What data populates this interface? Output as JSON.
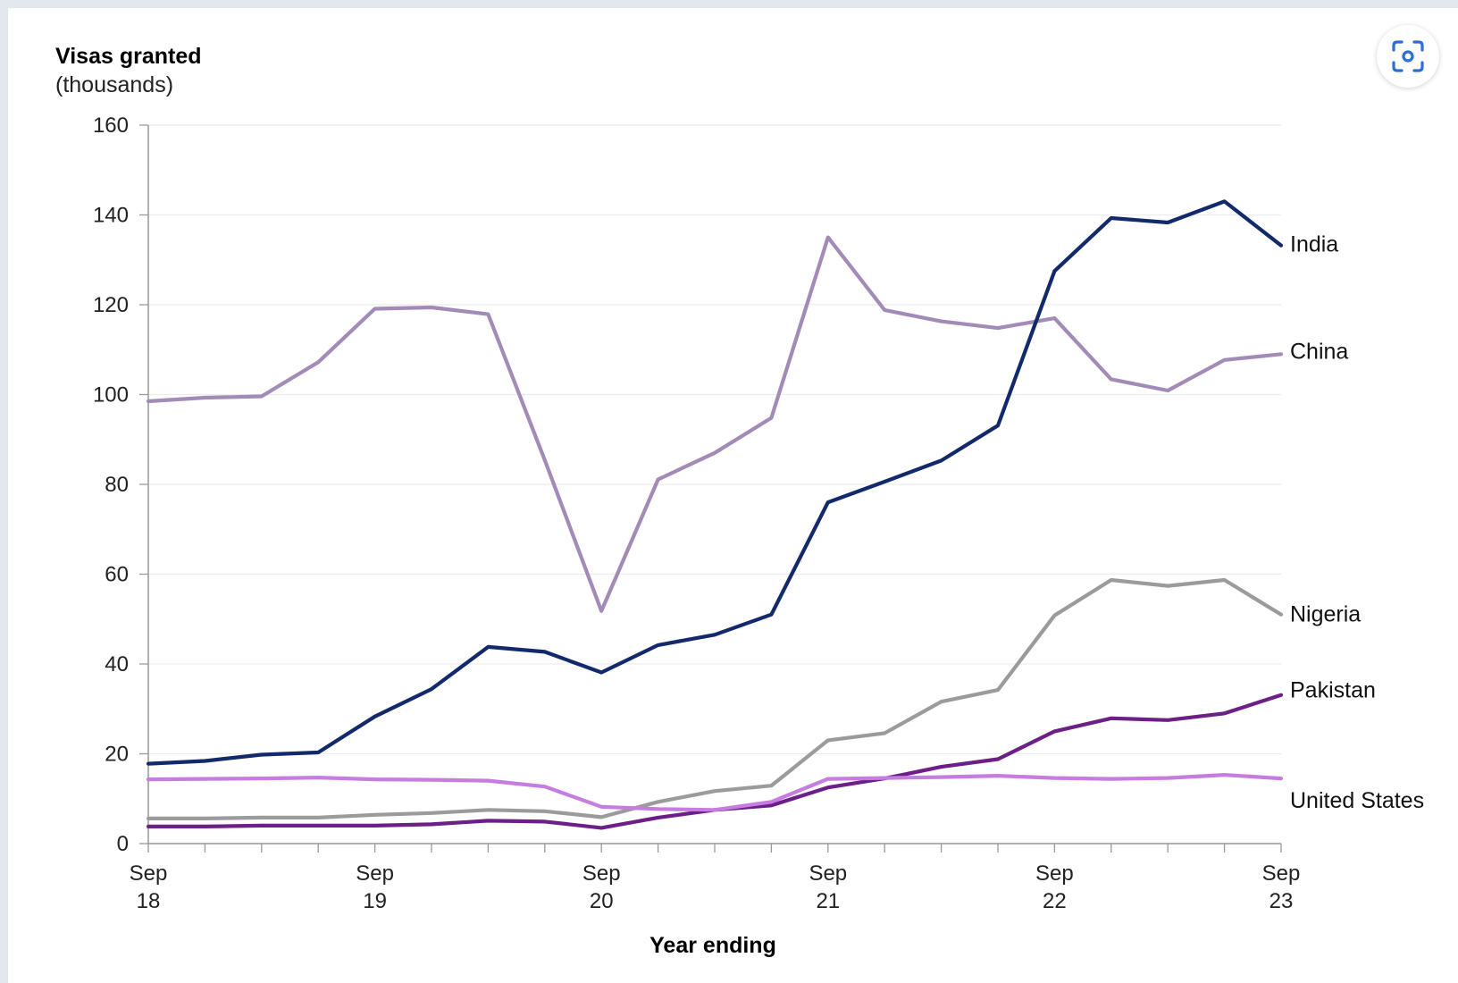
{
  "screenshot_button": {
    "icon": "camera-focus-icon",
    "color": "#2b6fd6"
  },
  "chart_data": {
    "type": "line",
    "y_title": "Visas granted",
    "y_subtitle": "(thousands)",
    "xlabel": "Year ending",
    "ylim": [
      0,
      160
    ],
    "yticks": [
      0,
      20,
      40,
      60,
      80,
      100,
      120,
      140,
      160
    ],
    "grid": true,
    "x_tick_labels": [
      [
        "Sep",
        "18"
      ],
      [
        "Sep",
        "19"
      ],
      [
        "Sep",
        "20"
      ],
      [
        "Sep",
        "21"
      ],
      [
        "Sep",
        "22"
      ],
      [
        "Sep",
        "23"
      ]
    ],
    "x": [
      "Sep 18",
      "Dec 18",
      "Mar 19",
      "Jun 19",
      "Sep 19",
      "Dec 19",
      "Mar 20",
      "Jun 20",
      "Sep 20",
      "Dec 20",
      "Mar 21",
      "Jun 21",
      "Sep 21",
      "Dec 21",
      "Mar 22",
      "Jun 22",
      "Sep 22",
      "Dec 22",
      "Mar 23",
      "Jun 23",
      "Sep 23"
    ],
    "series": [
      {
        "name": "China",
        "color": "#a38bb8",
        "values": [
          98.5,
          99.3,
          99.6,
          107.2,
          119.1,
          119.4,
          117.9,
          85.4,
          51.8,
          81.1,
          87.0,
          94.8,
          135.0,
          118.8,
          116.3,
          114.8,
          117.0,
          103.4,
          100.9,
          107.7,
          109.0
        ]
      },
      {
        "name": "India",
        "color": "#12296b",
        "values": [
          17.8,
          18.4,
          19.8,
          20.3,
          28.3,
          34.4,
          43.8,
          42.7,
          38.1,
          44.2,
          46.5,
          51.0,
          76.0,
          80.6,
          85.3,
          93.1,
          127.5,
          139.3,
          138.3,
          143.0,
          133.2
        ]
      },
      {
        "name": "Nigeria",
        "color": "#9b9b9b",
        "values": [
          5.6,
          5.6,
          5.8,
          5.8,
          6.4,
          6.8,
          7.5,
          7.2,
          5.9,
          9.3,
          11.7,
          12.9,
          23.0,
          24.6,
          31.6,
          34.2,
          50.8,
          58.7,
          57.4,
          58.7,
          51.0
        ]
      },
      {
        "name": "Pakistan",
        "color": "#6c1f87",
        "values": [
          3.8,
          3.8,
          4.0,
          4.0,
          4.0,
          4.3,
          5.1,
          4.9,
          3.5,
          5.8,
          7.5,
          8.5,
          12.5,
          14.5,
          17.1,
          18.8,
          25.0,
          27.9,
          27.5,
          29.0,
          33.1
        ]
      },
      {
        "name": "United States",
        "color": "#c77de0",
        "values": [
          14.3,
          14.4,
          14.5,
          14.7,
          14.3,
          14.2,
          14.0,
          12.7,
          8.2,
          7.7,
          7.5,
          9.3,
          14.4,
          14.6,
          14.8,
          15.1,
          14.6,
          14.4,
          14.6,
          15.3,
          14.5
        ]
      }
    ]
  }
}
